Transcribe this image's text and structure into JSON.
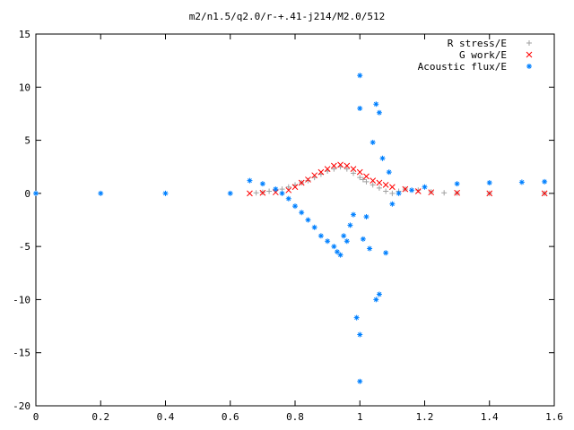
{
  "chart_data": {
    "type": "scatter",
    "title": "m2/n1.5/q2.0/r-+.41-j214/M2.0/512",
    "xlabel": "",
    "ylabel": "",
    "xlim": [
      0,
      1.6
    ],
    "ylim": [
      -20,
      15
    ],
    "xticks": [
      0,
      0.2,
      0.4,
      0.6,
      0.8,
      1,
      1.2,
      1.4,
      1.6
    ],
    "xtick_labels": [
      "0",
      "0.2",
      "0.4",
      "0.6",
      "0.8",
      "1",
      "1.2",
      "1.4",
      "1.6"
    ],
    "yticks": [
      -20,
      -15,
      -10,
      -5,
      0,
      5,
      10,
      15
    ],
    "ytick_labels": [
      "-20",
      "-15",
      "-10",
      "-5",
      "0",
      "5",
      "10",
      "15"
    ],
    "grid": false,
    "legend_position": "top-right",
    "series": [
      {
        "name": "R stress/E",
        "marker": "+",
        "color": "#a0a0a0",
        "points": [
          [
            0.68,
            0.05
          ],
          [
            0.7,
            0.1
          ],
          [
            0.72,
            0.2
          ],
          [
            0.74,
            0.3
          ],
          [
            0.76,
            0.4
          ],
          [
            0.78,
            0.6
          ],
          [
            0.8,
            0.8
          ],
          [
            0.82,
            1.0
          ],
          [
            0.84,
            1.2
          ],
          [
            0.86,
            1.5
          ],
          [
            0.88,
            1.8
          ],
          [
            0.9,
            2.1
          ],
          [
            0.92,
            2.3
          ],
          [
            0.94,
            2.5
          ],
          [
            0.96,
            2.3
          ],
          [
            0.98,
            1.9
          ],
          [
            1.0,
            1.5
          ],
          [
            1.01,
            1.3
          ],
          [
            1.02,
            1.1
          ],
          [
            1.04,
            0.8
          ],
          [
            1.06,
            0.5
          ],
          [
            1.08,
            0.2
          ],
          [
            1.1,
            0.0
          ],
          [
            1.12,
            0.2
          ],
          [
            1.14,
            0.4
          ],
          [
            1.18,
            0.3
          ],
          [
            1.22,
            0.15
          ],
          [
            1.26,
            0.05
          ],
          [
            1.3,
            0.02
          ],
          [
            1.4,
            0.0
          ],
          [
            1.57,
            0.0
          ]
        ]
      },
      {
        "name": "G work/E",
        "marker": "x",
        "color": "#ff0000",
        "points": [
          [
            0.66,
            0.0
          ],
          [
            0.7,
            0.05
          ],
          [
            0.74,
            0.1
          ],
          [
            0.78,
            0.3
          ],
          [
            0.8,
            0.6
          ],
          [
            0.82,
            1.0
          ],
          [
            0.84,
            1.3
          ],
          [
            0.86,
            1.7
          ],
          [
            0.88,
            2.0
          ],
          [
            0.9,
            2.3
          ],
          [
            0.92,
            2.6
          ],
          [
            0.94,
            2.7
          ],
          [
            0.96,
            2.6
          ],
          [
            0.98,
            2.3
          ],
          [
            1.0,
            2.0
          ],
          [
            1.02,
            1.6
          ],
          [
            1.04,
            1.2
          ],
          [
            1.06,
            1.0
          ],
          [
            1.08,
            0.8
          ],
          [
            1.1,
            0.6
          ],
          [
            1.14,
            0.4
          ],
          [
            1.18,
            0.2
          ],
          [
            1.22,
            0.1
          ],
          [
            1.3,
            0.05
          ],
          [
            1.4,
            0.0
          ],
          [
            1.57,
            0.0
          ]
        ]
      },
      {
        "name": "Acoustic flux/E",
        "marker": "*",
        "color": "#0080ff",
        "points": [
          [
            0.0,
            0.0
          ],
          [
            0.2,
            0.0
          ],
          [
            0.4,
            0.0
          ],
          [
            0.6,
            0.0
          ],
          [
            0.66,
            1.2
          ],
          [
            0.7,
            0.9
          ],
          [
            0.74,
            0.4
          ],
          [
            0.76,
            0.0
          ],
          [
            0.78,
            -0.5
          ],
          [
            0.8,
            -1.2
          ],
          [
            0.82,
            -1.8
          ],
          [
            0.84,
            -2.5
          ],
          [
            0.86,
            -3.2
          ],
          [
            0.88,
            -4.0
          ],
          [
            0.9,
            -4.5
          ],
          [
            0.92,
            -5.0
          ],
          [
            0.93,
            -5.5
          ],
          [
            0.94,
            -5.8
          ],
          [
            0.95,
            -4.0
          ],
          [
            0.96,
            -4.5
          ],
          [
            0.97,
            -3.0
          ],
          [
            0.98,
            -2.0
          ],
          [
            0.99,
            -11.7
          ],
          [
            1.0,
            11.1
          ],
          [
            1.0,
            -17.7
          ],
          [
            1.0,
            8.0
          ],
          [
            1.0,
            -13.3
          ],
          [
            1.01,
            -4.3
          ],
          [
            1.02,
            -2.2
          ],
          [
            1.03,
            -5.2
          ],
          [
            1.04,
            4.8
          ],
          [
            1.05,
            8.4
          ],
          [
            1.05,
            -10.0
          ],
          [
            1.06,
            7.6
          ],
          [
            1.06,
            -9.5
          ],
          [
            1.07,
            3.3
          ],
          [
            1.08,
            -5.6
          ],
          [
            1.09,
            2.0
          ],
          [
            1.1,
            -1.0
          ],
          [
            1.12,
            0.0
          ],
          [
            1.16,
            0.3
          ],
          [
            1.2,
            0.6
          ],
          [
            1.3,
            0.9
          ],
          [
            1.4,
            1.0
          ],
          [
            1.5,
            1.05
          ],
          [
            1.57,
            1.1
          ]
        ]
      }
    ]
  }
}
